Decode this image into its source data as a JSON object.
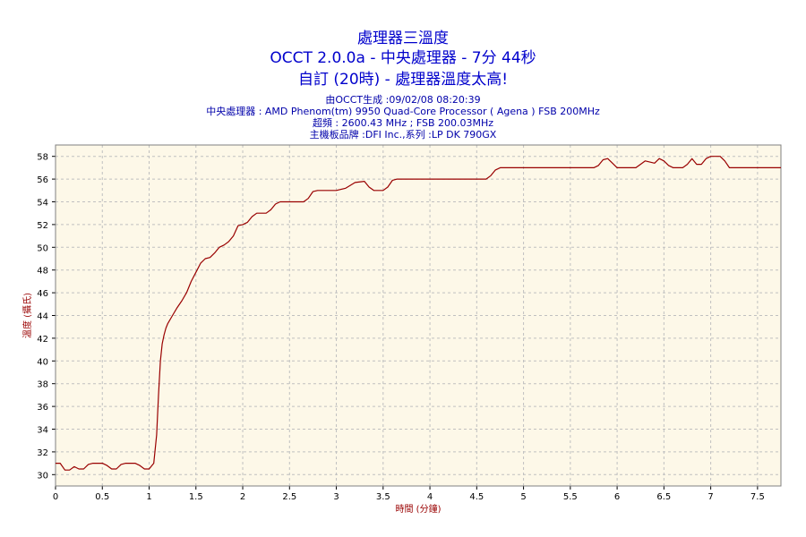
{
  "titles": {
    "title": "處理器三溫度",
    "line2": "OCCT 2.0.0a - 中央處理器 - 7分 44秒",
    "line3": "自訂 (20時) - 處理器溫度太高!"
  },
  "info": {
    "generated": "由OCCT生成 :09/02/08 08:20:39",
    "cpu": "中央處理器 : AMD Phenom(tm) 9950 Quad-Core Processor ( Agena ) FSB 200MHz",
    "clock": "超頻 : 2600.43 MHz ; FSB 200.03MHz",
    "board": "主機板品牌 :DFI Inc.,系列 :LP DK 790GX"
  },
  "colors": {
    "plot_bg": "#fdf8e8",
    "grid": "#c0c0c0",
    "line": "#990000",
    "title": "#0000cc"
  },
  "chart_data": {
    "type": "line",
    "xlabel": "時間 (分鐘)",
    "ylabel": "溫度 (攝氏)",
    "xlim": [
      0,
      7.75
    ],
    "ylim": [
      29,
      59
    ],
    "xticks": [
      0,
      0.5,
      1,
      1.5,
      2,
      2.5,
      3,
      3.5,
      4,
      4.5,
      5,
      5.5,
      6,
      6.5,
      7,
      7.5
    ],
    "yticks": [
      30,
      32,
      34,
      36,
      38,
      40,
      42,
      44,
      46,
      48,
      50,
      52,
      54,
      56,
      58
    ],
    "grid": true,
    "series": [
      {
        "x": [
          0,
          0.05,
          0.1,
          0.15,
          0.2,
          0.25,
          0.3,
          0.35,
          0.4,
          0.45,
          0.5,
          0.55,
          0.6,
          0.65,
          0.7,
          0.75,
          0.8,
          0.85,
          0.9,
          0.95,
          1.0,
          1.05,
          1.08,
          1.1,
          1.12,
          1.14,
          1.16,
          1.18,
          1.2,
          1.25,
          1.3,
          1.35,
          1.4,
          1.45,
          1.5,
          1.55,
          1.6,
          1.65,
          1.7,
          1.75,
          1.8,
          1.85,
          1.9,
          1.95,
          2.0,
          2.05,
          2.1,
          2.15,
          2.2,
          2.25,
          2.3,
          2.35,
          2.4,
          2.45,
          2.5,
          2.55,
          2.6,
          2.65,
          2.7,
          2.75,
          2.8,
          2.85,
          2.9,
          2.95,
          3.0,
          3.1,
          3.2,
          3.3,
          3.35,
          3.4,
          3.45,
          3.5,
          3.55,
          3.6,
          3.65,
          3.7,
          3.8,
          4.0,
          4.2,
          4.4,
          4.6,
          4.65,
          4.7,
          4.75,
          4.8,
          5.0,
          5.5,
          5.75,
          5.8,
          5.85,
          5.9,
          5.95,
          6.0,
          6.1,
          6.2,
          6.25,
          6.3,
          6.35,
          6.4,
          6.45,
          6.5,
          6.55,
          6.6,
          6.65,
          6.7,
          6.75,
          6.8,
          6.85,
          6.9,
          6.95,
          7.0,
          7.05,
          7.1,
          7.15,
          7.2,
          7.3,
          7.5,
          7.75
        ],
        "y": [
          31,
          31,
          30.4,
          30.4,
          30.7,
          30.5,
          30.5,
          30.9,
          31,
          31,
          31,
          30.8,
          30.5,
          30.5,
          30.9,
          31,
          31,
          31,
          30.8,
          30.5,
          30.5,
          31,
          33.5,
          37,
          40,
          41.5,
          42.3,
          42.9,
          43.3,
          44,
          44.7,
          45.3,
          46,
          47,
          47.8,
          48.6,
          49,
          49.1,
          49.5,
          50,
          50.2,
          50.5,
          51,
          51.9,
          52,
          52.2,
          52.7,
          53,
          53,
          53,
          53.3,
          53.8,
          54,
          54,
          54,
          54,
          54,
          54,
          54.3,
          54.9,
          55,
          55,
          55,
          55,
          55,
          55.2,
          55.7,
          55.8,
          55.3,
          55,
          55,
          55,
          55.3,
          55.9,
          56,
          56,
          56,
          56,
          56,
          56,
          56,
          56.3,
          56.8,
          57,
          57,
          57,
          57,
          57,
          57.2,
          57.7,
          57.8,
          57.4,
          57,
          57,
          57,
          57.3,
          57.6,
          57.5,
          57.4,
          57.8,
          57.6,
          57.2,
          57,
          57,
          57,
          57.3,
          57.8,
          57.3,
          57.3,
          57.8,
          58,
          58,
          58,
          57.6,
          57,
          57,
          57,
          57
        ]
      }
    ]
  }
}
